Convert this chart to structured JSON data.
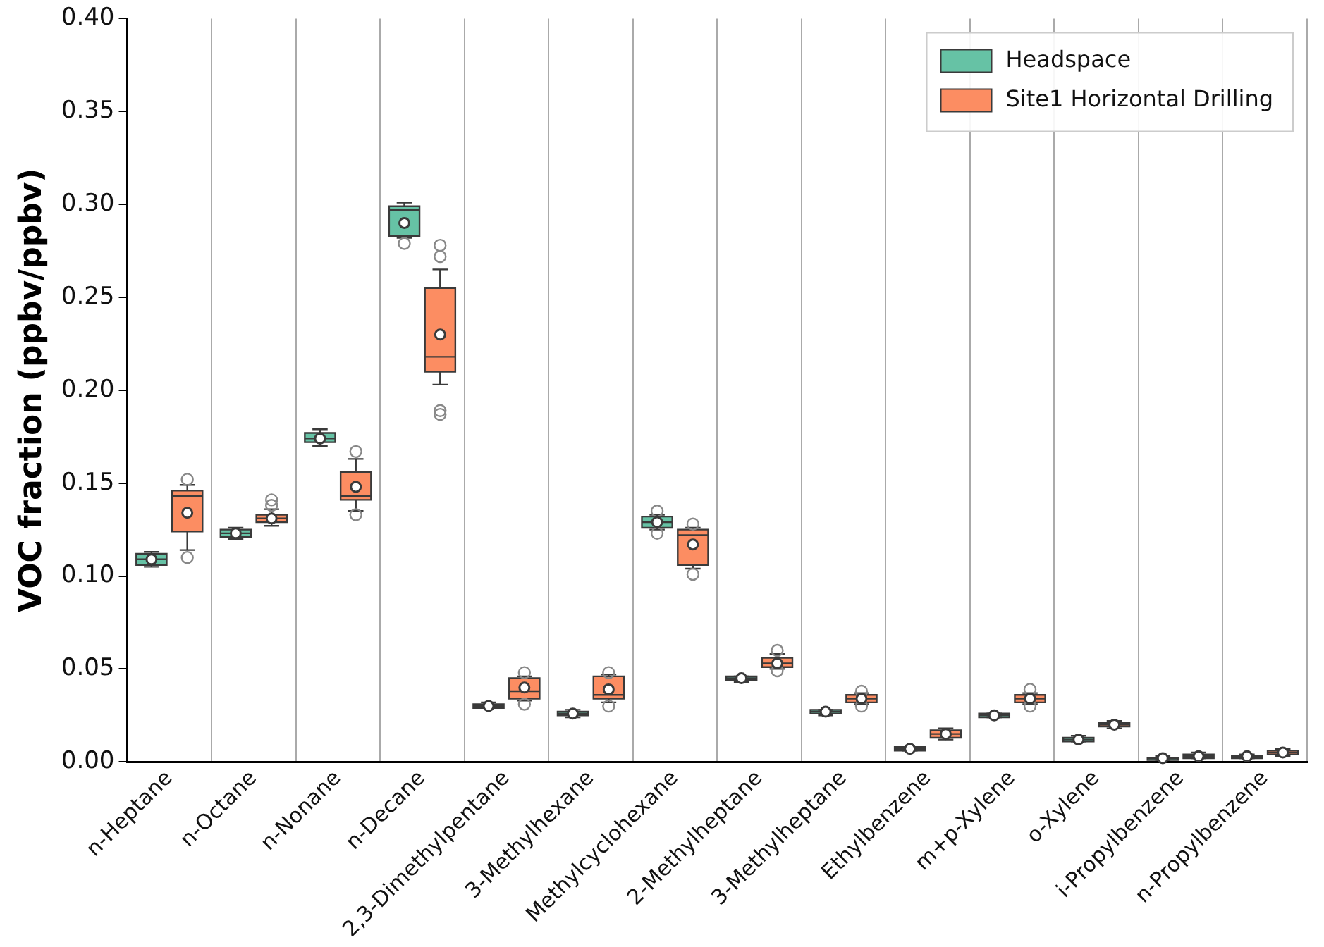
{
  "chart_data": {
    "type": "box",
    "ylabel": "VOC fraction (ppbv/ppbv)",
    "categories": [
      "n-Heptane",
      "n-Octane",
      "n-Nonane",
      "n-Decane",
      "2,3-Dimethylpentane",
      "3-Methylhexane",
      "Methylcyclohexane",
      "2-Methylheptane",
      "3-Methylheptane",
      "Ethylbenzene",
      "m+p-Xylene",
      "o-Xylene",
      "i-Propylbenzene",
      "n-Propylbenzene"
    ],
    "series": [
      {
        "name": "Headspace",
        "color": "#66c2a5",
        "boxes": [
          {
            "low": 0.105,
            "q1": 0.106,
            "median": 0.109,
            "q3": 0.112,
            "high": 0.113,
            "mean": 0.109
          },
          {
            "low": 0.12,
            "q1": 0.121,
            "median": 0.123,
            "q3": 0.125,
            "high": 0.126,
            "mean": 0.123
          },
          {
            "low": 0.17,
            "q1": 0.172,
            "median": 0.174,
            "q3": 0.177,
            "high": 0.179,
            "mean": 0.174
          },
          {
            "low": 0.282,
            "q1": 0.283,
            "median": 0.297,
            "q3": 0.299,
            "high": 0.301,
            "mean": 0.29,
            "outliers": [
              0.279
            ]
          },
          {
            "low": 0.029,
            "q1": 0.029,
            "median": 0.03,
            "q3": 0.031,
            "high": 0.032,
            "mean": 0.03
          },
          {
            "low": 0.024,
            "q1": 0.025,
            "median": 0.026,
            "q3": 0.027,
            "high": 0.028,
            "mean": 0.026
          },
          {
            "low": 0.125,
            "q1": 0.126,
            "median": 0.129,
            "q3": 0.132,
            "high": 0.133,
            "mean": 0.129,
            "outliers": [
              0.135,
              0.123
            ]
          },
          {
            "low": 0.043,
            "q1": 0.044,
            "median": 0.045,
            "q3": 0.046,
            "high": 0.046,
            "mean": 0.045
          },
          {
            "low": 0.025,
            "q1": 0.026,
            "median": 0.027,
            "q3": 0.028,
            "high": 0.028,
            "mean": 0.027
          },
          {
            "low": 0.006,
            "q1": 0.006,
            "median": 0.007,
            "q3": 0.008,
            "high": 0.008,
            "mean": 0.007
          },
          {
            "low": 0.024,
            "q1": 0.024,
            "median": 0.025,
            "q3": 0.026,
            "high": 0.026,
            "mean": 0.025
          },
          {
            "low": 0.011,
            "q1": 0.011,
            "median": 0.012,
            "q3": 0.013,
            "high": 0.014,
            "mean": 0.012
          },
          {
            "low": 0.001,
            "q1": 0.001,
            "median": 0.002,
            "q3": 0.002,
            "high": 0.003,
            "mean": 0.002
          },
          {
            "low": 0.002,
            "q1": 0.002,
            "median": 0.003,
            "q3": 0.003,
            "high": 0.004,
            "mean": 0.003
          }
        ]
      },
      {
        "name": "Site1 Horizontal Drilling",
        "color": "#fc8d62",
        "boxes": [
          {
            "low": 0.114,
            "q1": 0.124,
            "median": 0.143,
            "q3": 0.146,
            "high": 0.149,
            "mean": 0.134,
            "outliers": [
              0.152,
              0.11
            ]
          },
          {
            "low": 0.127,
            "q1": 0.129,
            "median": 0.131,
            "q3": 0.133,
            "high": 0.136,
            "mean": 0.131,
            "outliers": [
              0.141,
              0.138
            ]
          },
          {
            "low": 0.135,
            "q1": 0.141,
            "median": 0.143,
            "q3": 0.156,
            "high": 0.163,
            "mean": 0.148,
            "outliers": [
              0.167,
              0.133
            ]
          },
          {
            "low": 0.203,
            "q1": 0.21,
            "median": 0.218,
            "q3": 0.255,
            "high": 0.265,
            "mean": 0.23,
            "outliers": [
              0.278,
              0.272,
              0.189,
              0.187
            ]
          },
          {
            "low": 0.033,
            "q1": 0.034,
            "median": 0.038,
            "q3": 0.045,
            "high": 0.046,
            "mean": 0.04,
            "outliers": [
              0.048,
              0.031
            ]
          },
          {
            "low": 0.032,
            "q1": 0.034,
            "median": 0.036,
            "q3": 0.046,
            "high": 0.047,
            "mean": 0.039,
            "outliers": [
              0.048,
              0.03
            ]
          },
          {
            "low": 0.104,
            "q1": 0.106,
            "median": 0.122,
            "q3": 0.125,
            "high": 0.126,
            "mean": 0.117,
            "outliers": [
              0.128,
              0.101
            ]
          },
          {
            "low": 0.05,
            "q1": 0.051,
            "median": 0.053,
            "q3": 0.056,
            "high": 0.058,
            "mean": 0.053,
            "outliers": [
              0.06,
              0.049
            ]
          },
          {
            "low": 0.031,
            "q1": 0.032,
            "median": 0.034,
            "q3": 0.036,
            "high": 0.037,
            "mean": 0.034,
            "outliers": [
              0.038,
              0.03
            ]
          },
          {
            "low": 0.012,
            "q1": 0.013,
            "median": 0.015,
            "q3": 0.017,
            "high": 0.018,
            "mean": 0.015
          },
          {
            "low": 0.031,
            "q1": 0.032,
            "median": 0.034,
            "q3": 0.036,
            "high": 0.037,
            "mean": 0.034,
            "outliers": [
              0.039,
              0.03
            ]
          },
          {
            "low": 0.018,
            "q1": 0.019,
            "median": 0.02,
            "q3": 0.021,
            "high": 0.022,
            "mean": 0.02
          },
          {
            "low": 0.002,
            "q1": 0.002,
            "median": 0.003,
            "q3": 0.004,
            "high": 0.005,
            "mean": 0.003
          },
          {
            "low": 0.003,
            "q1": 0.004,
            "median": 0.005,
            "q3": 0.006,
            "high": 0.007,
            "mean": 0.005
          }
        ]
      }
    ],
    "ylim": [
      0,
      0.4
    ],
    "yticks": [
      {
        "value": 0,
        "label": "0.00"
      },
      {
        "value": 0.05,
        "label": "0.05"
      },
      {
        "value": 0.1,
        "label": "0.10"
      },
      {
        "value": 0.15,
        "label": "0.15"
      },
      {
        "value": 0.2,
        "label": "0.20"
      },
      {
        "value": 0.25,
        "label": "0.25"
      },
      {
        "value": 0.3,
        "label": "0.30"
      },
      {
        "value": 0.35,
        "label": "0.35"
      },
      {
        "value": 0.4,
        "label": "0.40"
      }
    ],
    "grid": "x",
    "legend": "top right"
  }
}
